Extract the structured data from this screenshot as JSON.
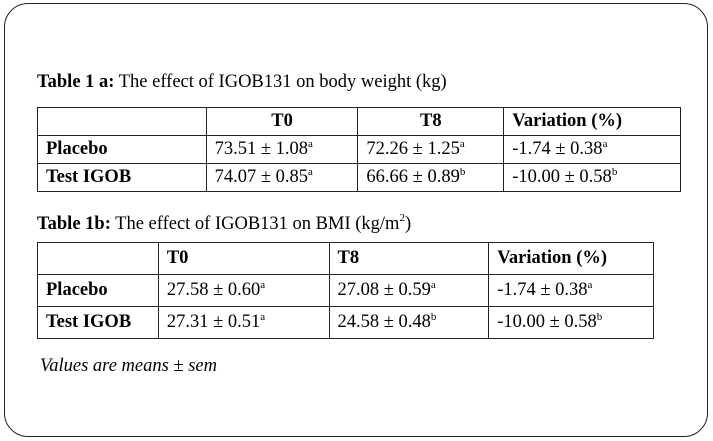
{
  "table1": {
    "caption_bold": "Table 1 a:",
    "caption_rest": " The effect of IGOB131 on body weight (kg)",
    "headers": [
      "",
      "T0",
      "T8",
      "Variation (%)"
    ],
    "rows": [
      {
        "label": "Placebo",
        "t0": "73.51 ± 1.08",
        "t0_sup": "a",
        "t8": "72.26 ± 1.25",
        "t8_sup": "a",
        "var": "-1.74 ± 0.38",
        "var_sup": "a"
      },
      {
        "label": "Test IGOB",
        "t0": "74.07 ± 0.85",
        "t0_sup": "a",
        "t8": "66.66 ± 0.89",
        "t8_sup": "b",
        "var": "-10.00 ± 0.58",
        "var_sup": "b"
      }
    ]
  },
  "table2": {
    "caption_bold": "Table 1b:",
    "caption_rest": "  The effect of IGOB131 on BMI (kg/m",
    "caption_sup": "2",
    "caption_end": ")",
    "headers": [
      "",
      "T0",
      "T8",
      "Variation (%)"
    ],
    "rows": [
      {
        "label": "Placebo",
        "t0": "27.58 ± 0.60",
        "t0_sup": "a",
        "t8": "27.08  ± 0.59",
        "t8_sup": "a",
        "var": "-1.74 ± 0.38",
        "var_sup": "a"
      },
      {
        "label": "Test IGOB",
        "t0": "27.31 ± 0.51",
        "t0_sup": "a",
        "t8": "24.58 ± 0.48",
        "t8_sup": "b",
        "var": "-10.00 ± 0.58",
        "var_sup": "b"
      }
    ]
  },
  "note": "Values are means ± sem"
}
